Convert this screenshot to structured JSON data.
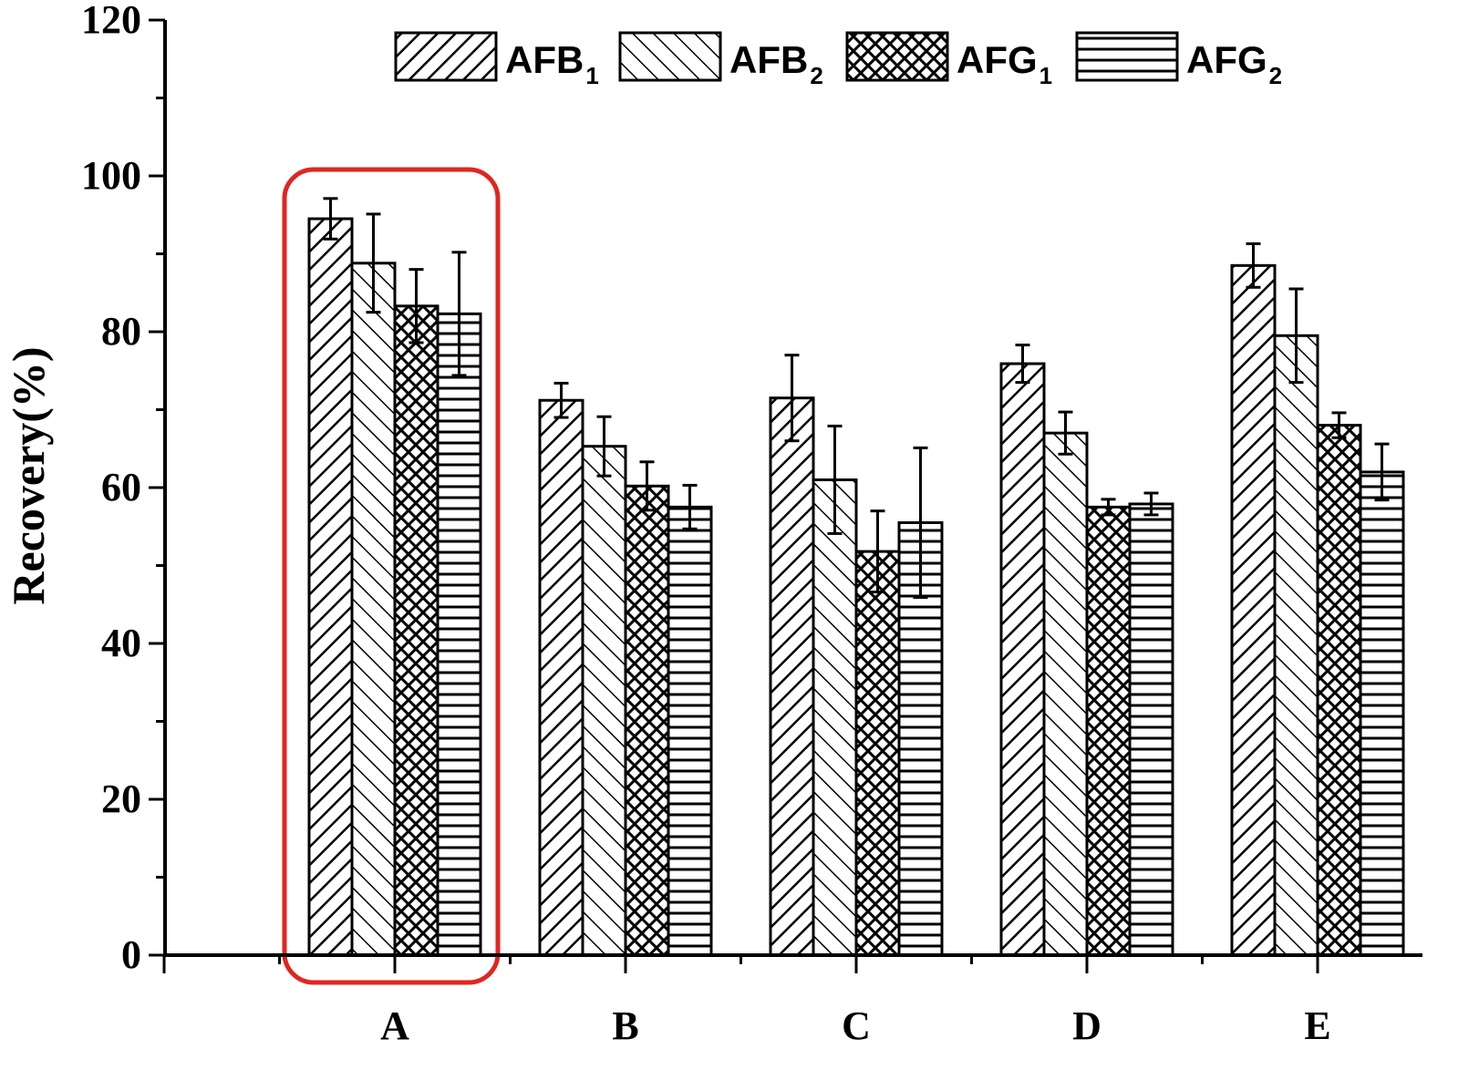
{
  "chart_data": {
    "type": "bar",
    "categories": [
      "A",
      "B",
      "C",
      "D",
      "E"
    ],
    "series": [
      {
        "name": "AFB",
        "name_sub": "1",
        "pattern": "diag-fwd",
        "values": [
          94.5,
          71.2,
          71.5,
          75.9,
          88.5
        ],
        "errors": [
          2.6,
          2.2,
          5.5,
          2.4,
          2.8
        ]
      },
      {
        "name": "AFB",
        "name_sub": "2",
        "pattern": "diag-back",
        "values": [
          88.8,
          65.3,
          61.0,
          67.0,
          79.5
        ],
        "errors": [
          6.3,
          3.8,
          6.9,
          2.7,
          6.0
        ]
      },
      {
        "name": "AFG",
        "name_sub": "1",
        "pattern": "crosshatch",
        "values": [
          83.3,
          60.2,
          51.8,
          57.5,
          68.0
        ],
        "errors": [
          4.7,
          3.1,
          5.2,
          1.0,
          1.6
        ]
      },
      {
        "name": "AFG",
        "name_sub": "2",
        "pattern": "horizontal",
        "values": [
          82.3,
          57.5,
          55.5,
          57.9,
          62.0
        ],
        "errors": [
          7.9,
          2.8,
          9.6,
          1.4,
          3.6
        ]
      }
    ],
    "ylabel": "Recovery(%)",
    "xlabel": "",
    "ylim": [
      0,
      120
    ],
    "yticks": [
      0,
      20,
      40,
      60,
      80,
      100,
      120
    ],
    "grid": false,
    "legend_placement": "top",
    "highlight": {
      "category": "A",
      "color": "#e0261f"
    }
  }
}
